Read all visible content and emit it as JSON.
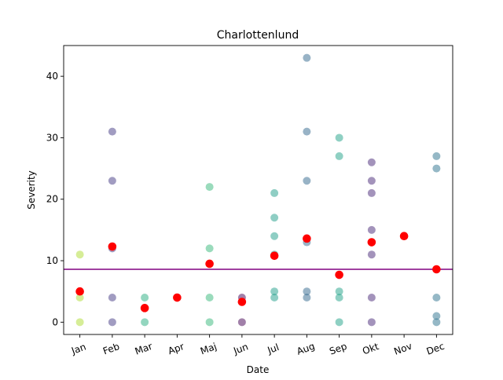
{
  "chart_data": {
    "type": "scatter",
    "title": "Charlottenlund",
    "xlabel": "Date",
    "ylabel": "Severity",
    "categories": [
      "Jan",
      "Feb",
      "Mar",
      "Apr",
      "Maj",
      "Jun",
      "Jul",
      "Aug",
      "Sep",
      "Okt",
      "Nov",
      "Dec"
    ],
    "xlim": [
      -0.5,
      11.5
    ],
    "ylim": [
      -2,
      45
    ],
    "yticks": [
      0,
      10,
      20,
      30,
      40
    ],
    "grid": false,
    "reference_line": {
      "y": 8.6,
      "color": "#800080"
    },
    "observations": [
      {
        "month": "Jan",
        "color": "#addc30",
        "values": [
          0,
          4,
          11
        ]
      },
      {
        "month": "Feb",
        "color": "#443983",
        "values": [
          0,
          4,
          12,
          23,
          31
        ]
      },
      {
        "month": "Mar",
        "color": "#28ae80",
        "values": [
          0,
          4
        ]
      },
      {
        "month": "Apr",
        "color": "#3e4989",
        "values": [
          4
        ]
      },
      {
        "month": "Maj",
        "color": "#35b779",
        "values": [
          0,
          4,
          12,
          22
        ]
      },
      {
        "month": "Jun",
        "color": "#440154",
        "values": [
          0,
          4
        ]
      },
      {
        "month": "Jul",
        "color": "#1f9e89",
        "values": [
          4,
          5,
          11,
          14,
          17,
          21
        ]
      },
      {
        "month": "Aug",
        "color": "#31688e",
        "values": [
          4,
          5,
          13,
          23,
          31,
          43
        ]
      },
      {
        "month": "Sep",
        "color": "#1fa187",
        "values": [
          0,
          4,
          5,
          27,
          30
        ]
      },
      {
        "month": "Okt",
        "color": "#482878",
        "values": [
          0,
          4,
          11,
          15,
          21,
          23,
          26
        ]
      },
      {
        "month": "Nov",
        "color": "#26828e",
        "values": [
          14
        ]
      },
      {
        "month": "Dec",
        "color": "#2c728e",
        "values": [
          0,
          1,
          4,
          25,
          27
        ]
      }
    ],
    "means": {
      "color": "#ff0000",
      "values": [
        5.0,
        12.3,
        2.3,
        4.0,
        9.5,
        3.3,
        10.8,
        13.6,
        7.7,
        13.0,
        14.0,
        8.6
      ]
    }
  }
}
